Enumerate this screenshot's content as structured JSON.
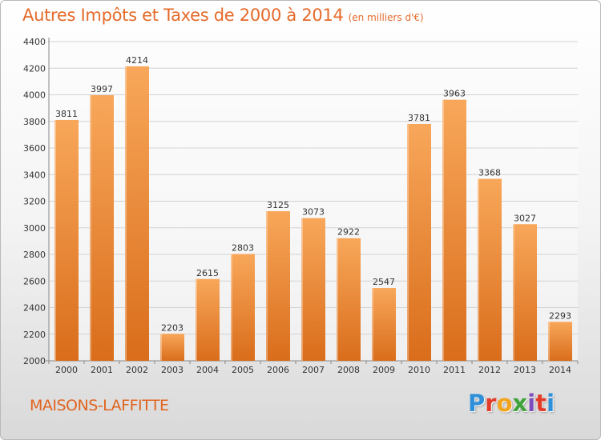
{
  "chart_data": {
    "type": "bar",
    "title": "Autres Impôts et Taxes de 2000 à 2014",
    "subtitle": "(en milliers d'€)",
    "categories": [
      "2000",
      "2001",
      "2002",
      "2003",
      "2004",
      "2005",
      "2006",
      "2007",
      "2008",
      "2009",
      "2010",
      "2011",
      "2012",
      "2013",
      "2014"
    ],
    "values": [
      3811,
      3997,
      4214,
      2203,
      2615,
      2803,
      3125,
      3073,
      2922,
      2547,
      3781,
      3963,
      3368,
      3027,
      2293
    ],
    "yticks": [
      2000,
      2200,
      2400,
      2600,
      2800,
      3000,
      3200,
      3400,
      3600,
      3800,
      4000,
      4200,
      4400
    ],
    "ylim": [
      2000,
      4400
    ],
    "xlabel": "",
    "ylabel": "",
    "grid": true,
    "bar_color_light": "#f8a75a",
    "bar_color_dark": "#d96d1b"
  },
  "footer": {
    "city": "MAISONS-LAFFITTE",
    "logo_letters": [
      "P",
      "r",
      "o",
      "x",
      "i",
      "t",
      "i"
    ],
    "logo_colors": [
      "#2f8fd8",
      "#e23b2a",
      "#f2a51c",
      "#3ea33a",
      "#7e4dbd",
      "#e23b2a",
      "#2f8fd8"
    ]
  }
}
